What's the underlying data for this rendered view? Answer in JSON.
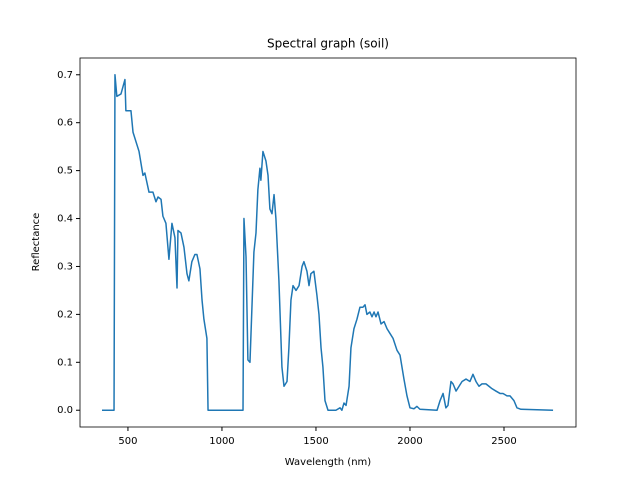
{
  "chart_data": {
    "type": "line",
    "title": "Spectral graph (soil)",
    "x_label": "Wavelength (nm)",
    "y_label": "Reflectance",
    "x": [
      362,
      426,
      431,
      441,
      463,
      484,
      489,
      516,
      527,
      559,
      580,
      590,
      612,
      633,
      649,
      660,
      676,
      686,
      702,
      718,
      734,
      750,
      761,
      766,
      782,
      798,
      814,
      824,
      840,
      856,
      867,
      883,
      894,
      904,
      920,
      926,
      1112,
      1117,
      1128,
      1138,
      1149,
      1170,
      1181,
      1191,
      1202,
      1207,
      1218,
      1234,
      1245,
      1255,
      1266,
      1277,
      1287,
      1303,
      1319,
      1330,
      1346,
      1356,
      1367,
      1378,
      1394,
      1410,
      1426,
      1436,
      1452,
      1463,
      1473,
      1489,
      1505,
      1516,
      1527,
      1537,
      1548,
      1564,
      1606,
      1628,
      1638,
      1649,
      1660,
      1676,
      1686,
      1702,
      1718,
      1734,
      1750,
      1761,
      1771,
      1787,
      1798,
      1809,
      1819,
      1830,
      1846,
      1862,
      1878,
      1894,
      1910,
      1931,
      1947,
      1968,
      1984,
      2000,
      2021,
      2037,
      2053,
      2144,
      2160,
      2176,
      2191,
      2202,
      2218,
      2229,
      2245,
      2261,
      2277,
      2298,
      2319,
      2335,
      2351,
      2367,
      2383,
      2404,
      2420,
      2436,
      2457,
      2479,
      2495,
      2516,
      2532,
      2553,
      2569,
      2590,
      2761
    ],
    "series": [
      {
        "name": "soil",
        "color": "#1f77b4",
        "values": [
          0,
          0,
          0.7,
          0.655,
          0.66,
          0.69,
          0.625,
          0.625,
          0.58,
          0.54,
          0.49,
          0.495,
          0.455,
          0.455,
          0.435,
          0.445,
          0.44,
          0.405,
          0.39,
          0.315,
          0.39,
          0.36,
          0.255,
          0.375,
          0.37,
          0.34,
          0.285,
          0.27,
          0.31,
          0.325,
          0.325,
          0.295,
          0.23,
          0.19,
          0.15,
          0,
          0,
          0.4,
          0.32,
          0.105,
          0.1,
          0.33,
          0.37,
          0.46,
          0.505,
          0.48,
          0.54,
          0.52,
          0.49,
          0.42,
          0.41,
          0.45,
          0.4,
          0.27,
          0.09,
          0.05,
          0.06,
          0.13,
          0.23,
          0.26,
          0.25,
          0.26,
          0.3,
          0.31,
          0.29,
          0.26,
          0.285,
          0.29,
          0.24,
          0.2,
          0.13,
          0.09,
          0.02,
          0,
          0,
          0.005,
          0,
          0.015,
          0.01,
          0.05,
          0.13,
          0.17,
          0.19,
          0.215,
          0.215,
          0.22,
          0.2,
          0.205,
          0.195,
          0.205,
          0.195,
          0.205,
          0.18,
          0.185,
          0.17,
          0.16,
          0.15,
          0.125,
          0.115,
          0.065,
          0.03,
          0.005,
          0.003,
          0.008,
          0.002,
          0,
          0.02,
          0.035,
          0.005,
          0.01,
          0.06,
          0.055,
          0.04,
          0.05,
          0.06,
          0.065,
          0.06,
          0.075,
          0.06,
          0.05,
          0.055,
          0.055,
          0.05,
          0.045,
          0.04,
          0.035,
          0.035,
          0.03,
          0.03,
          0.02,
          0.005,
          0.002,
          0
        ]
      }
    ],
    "xlim": [
      245,
      2883
    ],
    "ylim": [
      -0.035,
      0.735
    ],
    "xticks": [
      500,
      1000,
      1500,
      2000,
      2500
    ],
    "yticks": [
      {
        "value": 0,
        "label": "0.0"
      },
      0.1,
      0.2,
      0.3,
      0.4,
      0.5,
      0.6,
      0.7
    ]
  }
}
